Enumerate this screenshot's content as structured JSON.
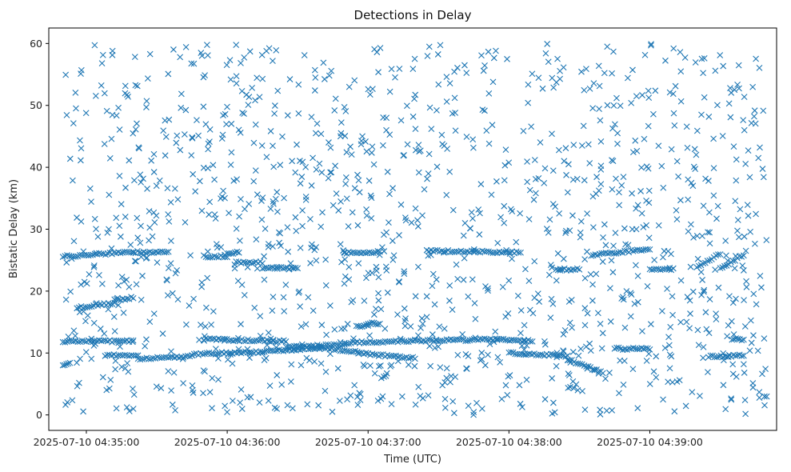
{
  "chart_data": {
    "type": "scatter",
    "title": "Detections in Delay",
    "xlabel": "Time (UTC)",
    "ylabel": "Bistatic Delay (km)",
    "marker": "x",
    "color": "#1f77b4",
    "grid": false,
    "xlim": [
      "2025-07-10T04:34:44",
      "2025-07-10T04:39:54"
    ],
    "ylim": [
      -2.5,
      62.5
    ],
    "x_ticks": [
      "2025-07-10 04:35:00",
      "2025-07-10 04:36:00",
      "2025-07-10 04:37:00",
      "2025-07-10 04:38:00",
      "2025-07-10 04:39:00"
    ],
    "y_ticks": [
      0,
      10,
      20,
      30,
      40,
      50,
      60
    ],
    "x_range": [
      "2025-07-10T04:34:50",
      "2025-07-10T04:39:50"
    ],
    "tracks": [
      {
        "x0": "04:34:50",
        "x1": "04:35:20",
        "y0": 25.6,
        "y1": 26.3
      },
      {
        "x0": "04:35:20",
        "x1": "04:35:35",
        "y0": 26.3,
        "y1": 26.3
      },
      {
        "x0": "04:34:50",
        "x1": "04:35:20",
        "y0": 11.9,
        "y1": 11.9
      },
      {
        "x0": "04:34:50",
        "x1": "04:34:53",
        "y0": 8.0,
        "y1": 8.3
      },
      {
        "x0": "04:34:56",
        "x1": "04:35:12",
        "y0": 17.3,
        "y1": 18.1
      },
      {
        "x0": "04:35:12",
        "x1": "04:35:20",
        "y0": 18.5,
        "y1": 19.0
      },
      {
        "x0": "04:35:08",
        "x1": "04:35:22",
        "y0": 9.6,
        "y1": 9.6
      },
      {
        "x0": "04:35:22",
        "x1": "04:35:45",
        "y0": 9.0,
        "y1": 9.5
      },
      {
        "x0": "04:35:45",
        "x1": "04:36:15",
        "y0": 9.8,
        "y1": 10.2
      },
      {
        "x0": "04:36:15",
        "x1": "04:36:40",
        "y0": 10.2,
        "y1": 10.9
      },
      {
        "x0": "04:36:40",
        "x1": "04:37:00",
        "y0": 10.9,
        "y1": 9.9
      },
      {
        "x0": "04:37:00",
        "x1": "04:37:20",
        "y0": 9.8,
        "y1": 9.2
      },
      {
        "x0": "04:35:50",
        "x1": "04:36:25",
        "y0": 12.2,
        "y1": 11.9
      },
      {
        "x0": "04:36:25",
        "x1": "04:36:50",
        "y0": 11.0,
        "y1": 11.3
      },
      {
        "x0": "04:36:50",
        "x1": "04:37:20",
        "y0": 11.6,
        "y1": 12.0
      },
      {
        "x0": "04:37:20",
        "x1": "04:37:55",
        "y0": 12.0,
        "y1": 12.2
      },
      {
        "x0": "04:37:55",
        "x1": "04:38:10",
        "y0": 12.2,
        "y1": 11.9
      },
      {
        "x0": "04:35:50",
        "x1": "04:36:00",
        "y0": 25.6,
        "y1": 25.6
      },
      {
        "x0": "04:36:00",
        "x1": "04:36:05",
        "y0": 26.2,
        "y1": 26.2
      },
      {
        "x0": "04:36:05",
        "x1": "04:36:15",
        "y0": 24.6,
        "y1": 24.6
      },
      {
        "x0": "04:36:15",
        "x1": "04:36:30",
        "y0": 23.7,
        "y1": 23.7
      },
      {
        "x0": "04:36:50",
        "x1": "04:37:05",
        "y0": 26.2,
        "y1": 26.3
      },
      {
        "x0": "04:37:25",
        "x1": "04:37:55",
        "y0": 26.5,
        "y1": 26.3
      },
      {
        "x0": "04:37:55",
        "x1": "04:38:05",
        "y0": 26.3,
        "y1": 26.3
      },
      {
        "x0": "04:38:20",
        "x1": "04:38:30",
        "y0": 23.5,
        "y1": 23.5
      },
      {
        "x0": "04:38:35",
        "x1": "04:39:00",
        "y0": 25.8,
        "y1": 26.8
      },
      {
        "x0": "04:39:00",
        "x1": "04:39:10",
        "y0": 23.5,
        "y1": 23.5
      },
      {
        "x0": "04:38:00",
        "x1": "04:38:25",
        "y0": 10.0,
        "y1": 9.5
      },
      {
        "x0": "04:38:25",
        "x1": "04:38:40",
        "y0": 9.0,
        "y1": 6.8
      },
      {
        "x0": "04:38:45",
        "x1": "04:39:00",
        "y0": 10.7,
        "y1": 10.7
      },
      {
        "x0": "04:39:25",
        "x1": "04:39:40",
        "y0": 9.4,
        "y1": 9.6
      },
      {
        "x0": "04:39:35",
        "x1": "04:39:40",
        "y0": 12.2,
        "y1": 12.2
      },
      {
        "x0": "04:39:30",
        "x1": "04:39:40",
        "y0": 23.6,
        "y1": 25.9
      },
      {
        "x0": "04:39:20",
        "x1": "04:39:30",
        "y0": 24.0,
        "y1": 26.0
      },
      {
        "x0": "04:36:55",
        "x1": "04:37:00",
        "y0": 14.3,
        "y1": 14.5
      },
      {
        "x0": "04:37:00",
        "x1": "04:37:05",
        "y0": 14.8,
        "y1": 14.8
      }
    ]
  }
}
